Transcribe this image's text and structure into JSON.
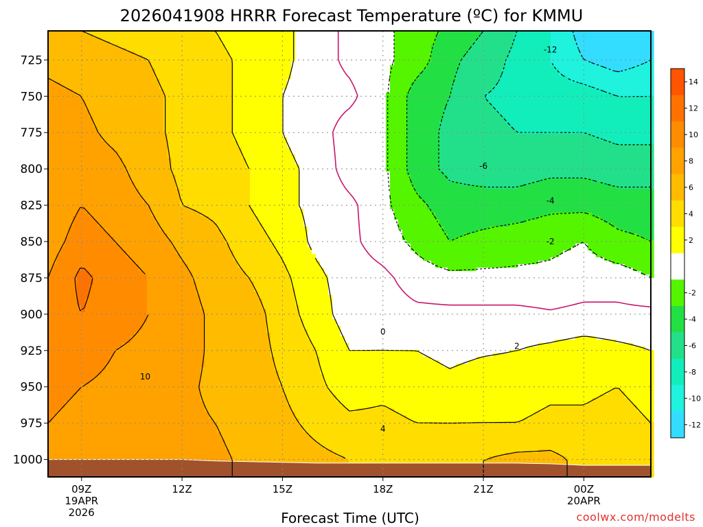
{
  "title": "2026041908 HRRR Forecast Temperature (ºC) for KMMU",
  "credit": "coolwx.com/modelts",
  "chart_data": {
    "type": "heatmap",
    "title": "2026041908 HRRR Forecast Temperature (ºC) for KMMU",
    "xlabel": "Forecast Time (UTC)",
    "ylabel": "",
    "x_range_hours": [
      8,
      26
    ],
    "y_range_hpa": [
      1012,
      705
    ],
    "y_ticks": [
      "725",
      "750",
      "775",
      "800",
      "825",
      "850",
      "875",
      "900",
      "925",
      "950",
      "975",
      "1000"
    ],
    "x_ticks": [
      {
        "hour": 9,
        "label": "09Z",
        "sub": [
          "19APR",
          "2026"
        ]
      },
      {
        "hour": 12,
        "label": "12Z",
        "sub": []
      },
      {
        "hour": 15,
        "label": "15Z",
        "sub": []
      },
      {
        "hour": 18,
        "label": "18Z",
        "sub": []
      },
      {
        "hour": 21,
        "label": "21Z",
        "sub": []
      },
      {
        "hour": 24,
        "label": "00Z",
        "sub": [
          "20APR"
        ]
      }
    ],
    "contour_labels": [
      "-12",
      "-6",
      "-4",
      "-2",
      "0",
      "2",
      "4",
      "10"
    ],
    "colorbar_labels": [
      "14",
      "12",
      "10",
      "8",
      "6",
      "4",
      "2",
      "-2",
      "-4",
      "-6",
      "-8",
      "-10",
      "-12"
    ],
    "grid": true,
    "temperature_grid_hours": [
      8,
      9,
      10,
      11,
      12,
      13,
      14,
      15,
      16,
      17,
      18,
      19,
      20,
      21,
      22,
      23,
      24,
      25,
      26
    ],
    "temperature_grid_levels": [
      705,
      725,
      750,
      775,
      800,
      825,
      850,
      875,
      900,
      925,
      950,
      975,
      1000,
      1012
    ],
    "temperature_grid": [
      [
        6.5,
        7.5,
        8.5,
        8.5,
        8.5,
        8.5,
        9.0,
        10.0,
        11.0,
        11.0,
        10.5,
        10.0,
        9.5,
        9.0
      ],
      [
        6.0,
        7.0,
        8.0,
        8.5,
        9.0,
        10.0,
        11.0,
        12.5,
        12.0,
        11.0,
        10.0,
        9.5,
        9.0,
        9.0
      ],
      [
        5.5,
        6.5,
        7.0,
        7.5,
        8.5,
        9.0,
        10.0,
        11.0,
        11.0,
        10.0,
        9.5,
        9.0,
        9.0,
        9.0
      ],
      [
        5.0,
        6.0,
        6.5,
        6.5,
        7.0,
        8.0,
        9.0,
        10.0,
        10.0,
        9.5,
        9.0,
        9.0,
        9.0,
        9.0
      ],
      [
        4.5,
        5.0,
        5.5,
        5.5,
        5.5,
        6.0,
        7.5,
        8.5,
        9.0,
        9.0,
        8.5,
        8.5,
        8.5,
        8.5
      ],
      [
        4.0,
        4.5,
        4.5,
        4.5,
        5.0,
        5.5,
        6.5,
        7.0,
        7.5,
        7.5,
        7.5,
        8.0,
        8.5,
        8.5
      ],
      [
        3.0,
        3.5,
        3.5,
        3.5,
        4.0,
        4.0,
        5.0,
        6.0,
        7.0,
        7.0,
        7.0,
        7.0,
        7.5,
        7.5
      ],
      [
        2.5,
        2.5,
        2.0,
        2.0,
        2.5,
        2.5,
        3.5,
        4.5,
        5.0,
        5.5,
        6.0,
        6.5,
        7.0,
        7.0
      ],
      [
        1.0,
        1.0,
        1.0,
        1.0,
        1.5,
        1.5,
        1.5,
        2.5,
        3.0,
        4.0,
        4.5,
        5.5,
        6.5,
        6.5
      ],
      [
        -0.5,
        -0.5,
        0.5,
        -1.0,
        -1.0,
        0.5,
        0.5,
        1.0,
        1.0,
        2.0,
        3.0,
        4.5,
        6.0,
        6.0
      ],
      [
        -1.5,
        -1.5,
        -1.5,
        -1.5,
        -1.5,
        -1.5,
        -1.0,
        0.5,
        1.0,
        2.0,
        3.5,
        4.5,
        5.5,
        5.5
      ],
      [
        -3.0,
        -3.0,
        -5.0,
        -5.0,
        -5.0,
        -3.5,
        -2.5,
        -1.0,
        0.5,
        2.0,
        3.0,
        4.0,
        5.5,
        5.5
      ],
      [
        -4.5,
        -5.5,
        -6.0,
        -6.5,
        -6.5,
        -5.0,
        -4.0,
        -1.5,
        0.5,
        1.5,
        2.5,
        4.0,
        5.5,
        5.5
      ],
      [
        -6.0,
        -7.0,
        -8.0,
        -7.5,
        -7.0,
        -5.0,
        -3.5,
        -1.5,
        0.5,
        1.8,
        3.0,
        4.0,
        6.0,
        6.0
      ],
      [
        -8.0,
        -8.5,
        -8.5,
        -8.0,
        -7.0,
        -5.0,
        -3.0,
        -1.5,
        0.5,
        2.0,
        3.0,
        4.0,
        6.5,
        6.5
      ],
      [
        -10.0,
        -10.0,
        -9.0,
        -8.0,
        -6.5,
        -4.5,
        -2.5,
        -1.5,
        0.2,
        2.5,
        3.5,
        4.5,
        6.5,
        6.5
      ],
      [
        -13.0,
        -12.0,
        -9.0,
        -8.0,
        -6.5,
        -4.5,
        -2.0,
        -1.0,
        0.5,
        3.0,
        3.5,
        4.5,
        5.5,
        5.5
      ],
      [
        -13.5,
        -13.0,
        -10.0,
        -8.5,
        -7.0,
        -5.0,
        -3.5,
        -1.0,
        0.5,
        2.5,
        4.0,
        5.0,
        5.5,
        5.5
      ],
      [
        -14.0,
        -12.0,
        -10.0,
        -8.5,
        -7.0,
        -5.0,
        -4.0,
        -2.0,
        0.5,
        2.0,
        3.0,
        4.0,
        5.0,
        5.0
      ]
    ],
    "surface_pressure_hpa": [
      1000,
      1000,
      1000,
      1000,
      1000,
      1001,
      1001.5,
      1002,
      1002.5,
      1002.5,
      1002.5,
      1002.5,
      1002.5,
      1002.5,
      1002.5,
      1003,
      1004,
      1004,
      1004
    ]
  },
  "colors": {
    "ground": "#a0522d",
    "contour_positive": "#000000",
    "contour_zero": "#c8146e",
    "contour_negative": "#000000"
  },
  "color_scale": [
    {
      "from": -14,
      "to": -12,
      "color": "#33ddff"
    },
    {
      "from": -12,
      "to": -10,
      "color": "#1ff2dd"
    },
    {
      "from": -10,
      "to": -8,
      "color": "#11eebb"
    },
    {
      "from": -8,
      "to": -6,
      "color": "#22e08a"
    },
    {
      "from": -6,
      "to": -4,
      "color": "#22e044"
    },
    {
      "from": -4,
      "to": -2,
      "color": "#55f500"
    },
    {
      "from": -2,
      "to": 2,
      "color": "#ffffff"
    },
    {
      "from": 2,
      "to": 4,
      "color": "#ffff00"
    },
    {
      "from": 4,
      "to": 6,
      "color": "#ffdd00"
    },
    {
      "from": 6,
      "to": 8,
      "color": "#ffbb00"
    },
    {
      "from": 8,
      "to": 10,
      "color": "#ffa200"
    },
    {
      "from": 10,
      "to": 12,
      "color": "#ff8c00"
    },
    {
      "from": 12,
      "to": 14,
      "color": "#ff7200"
    },
    {
      "from": 14,
      "to": 16,
      "color": "#ff5400"
    }
  ]
}
